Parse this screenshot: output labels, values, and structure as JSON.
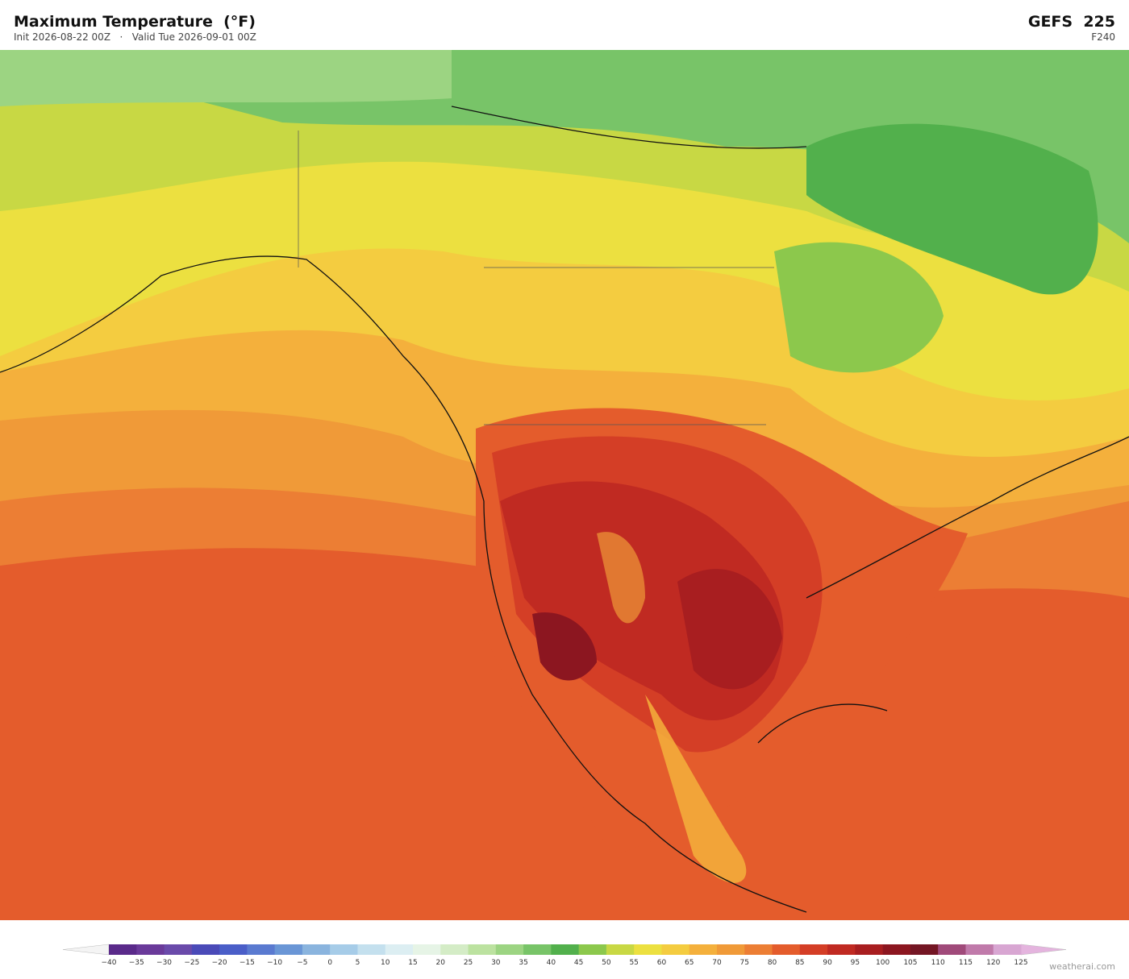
{
  "header": {
    "title": "Maximum Temperature  (°F)",
    "subtitle": "Init 2026-08-22 00Z   ·   Valid Tue 2026-09-01 00Z",
    "model": "GEFS  225",
    "forecast_hour": "F240"
  },
  "colorbar": {
    "ticks": [
      "−40",
      "−35",
      "−30",
      "−25",
      "−20",
      "−15",
      "−10",
      "−5",
      "0",
      "5",
      "10",
      "15",
      "20",
      "25",
      "30",
      "35",
      "40",
      "45",
      "50",
      "55",
      "60",
      "65",
      "70",
      "75",
      "80",
      "85",
      "90",
      "95",
      "100",
      "105",
      "110",
      "115",
      "120",
      "125"
    ],
    "colors": [
      "#5a2a8a",
      "#6a3a9a",
      "#6a4aaa",
      "#4a4ab8",
      "#4a5ec8",
      "#5a7ad0",
      "#6a96d6",
      "#8ab4de",
      "#a6cce8",
      "#c4e0ee",
      "#dceef2",
      "#e6f4e6",
      "#d4ecc6",
      "#bce2a0",
      "#9cd482",
      "#78c468",
      "#52b04c",
      "#8cc84c",
      "#c8d844",
      "#ece040",
      "#f4cc40",
      "#f4b03c",
      "#f09a38",
      "#ec7e34",
      "#e45c2c",
      "#d43e26",
      "#c02a22",
      "#a81e20",
      "#8c1620",
      "#741624",
      "#a04a7a",
      "#c07aaa",
      "#d8a6d2"
    ],
    "under_color": "#f4f4f4",
    "over_color": "#e4b4de"
  },
  "watermark": "weatherai.com"
}
